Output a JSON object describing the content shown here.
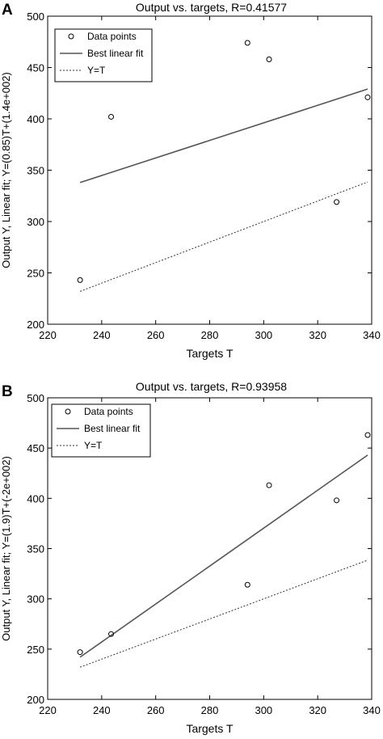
{
  "chart_data": [
    {
      "type": "scatter",
      "panel_label": "A",
      "title": "Output vs. targets, R=0.41577",
      "xlabel": "Targets T",
      "ylabel": "Output Y, Linear fit; Y=(0.85)T+(1.4e+002)",
      "xlim": [
        220,
        340
      ],
      "ylim": [
        200,
        500
      ],
      "xticks": [
        220,
        240,
        260,
        280,
        300,
        320,
        340
      ],
      "xtick_labels": [
        "220",
        "240",
        "260",
        "280",
        "300",
        "320",
        "340"
      ],
      "yticks": [
        200,
        250,
        300,
        350,
        400,
        450,
        500
      ],
      "ytick_labels": [
        "200",
        "250",
        "300",
        "350",
        "400",
        "450",
        "500"
      ],
      "grid": false,
      "legend_position": "top-left",
      "legend": [
        "Data points",
        "Best linear fit",
        "Y=T"
      ],
      "points": [
        {
          "x": 232,
          "y": 243
        },
        {
          "x": 243.5,
          "y": 402
        },
        {
          "x": 294,
          "y": 474
        },
        {
          "x": 302,
          "y": 458
        },
        {
          "x": 327,
          "y": 319
        },
        {
          "x": 338.5,
          "y": 421
        }
      ],
      "fit_line": {
        "x": [
          232,
          338.5
        ],
        "y": [
          338,
          429
        ]
      },
      "identity_line": {
        "x": [
          232,
          338.5
        ],
        "y": [
          232,
          338.5
        ]
      }
    },
    {
      "type": "scatter",
      "panel_label": "B",
      "title": "Output vs. targets, R=0.93958",
      "xlabel": "Targets T",
      "ylabel": "Output Y, Linear fit; Y=(1.9)T+(-2e+002)",
      "xlim": [
        220,
        340
      ],
      "ylim": [
        200,
        500
      ],
      "xticks": [
        220,
        240,
        260,
        280,
        300,
        320,
        340
      ],
      "xtick_labels": [
        "220",
        "240",
        "260",
        "280",
        "300",
        "320",
        "340"
      ],
      "yticks": [
        200,
        250,
        300,
        350,
        400,
        450,
        500
      ],
      "ytick_labels": [
        "200",
        "250",
        "300",
        "350",
        "400",
        "450",
        "500"
      ],
      "grid": false,
      "legend_position": "top-left",
      "legend": [
        "Data points",
        "Best linear fit",
        "Y=T"
      ],
      "points": [
        {
          "x": 232,
          "y": 247
        },
        {
          "x": 243.5,
          "y": 265
        },
        {
          "x": 294,
          "y": 314
        },
        {
          "x": 302,
          "y": 413
        },
        {
          "x": 327,
          "y": 398
        },
        {
          "x": 338.5,
          "y": 463
        }
      ],
      "fit_line": {
        "x": [
          232,
          338.5
        ],
        "y": [
          242,
          443
        ]
      },
      "identity_line": {
        "x": [
          232,
          338.5
        ],
        "y": [
          232,
          338.5
        ]
      }
    }
  ]
}
